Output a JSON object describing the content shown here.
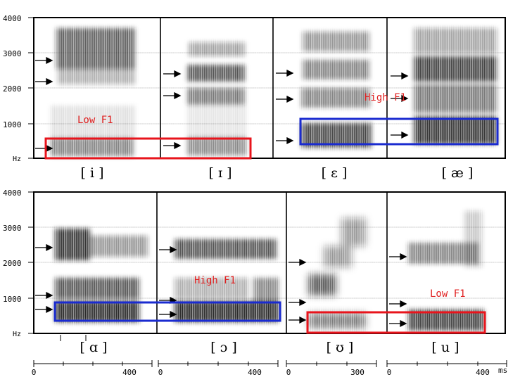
{
  "y_axis": {
    "top_ticks": [
      "4000",
      "3000",
      "2000",
      "1000",
      "Hz"
    ],
    "bottom_ticks": [
      "4000",
      "3000",
      "2000",
      "1000",
      "Hz"
    ]
  },
  "vowels_top": [
    "[ i ]",
    "[ ɪ ]",
    "[ ɛ ]",
    "[ æ ]"
  ],
  "vowels_bottom": [
    "[ ɑ ]",
    "[ ɔ ]",
    "[ ʊ ]",
    "[ u ]"
  ],
  "annotations": {
    "top_low": "Low F1",
    "top_high": "High F1",
    "bottom_high": "High F1",
    "bottom_low": "Low F1"
  },
  "time_axis": {
    "seg1": [
      "0",
      "400"
    ],
    "seg2": [
      "0",
      "400"
    ],
    "seg3": [
      "0",
      "300"
    ],
    "seg4": [
      "0",
      "400"
    ],
    "unit": "ms"
  },
  "colors": {
    "low_box": "#e8141c",
    "high_box": "#1a2bd0",
    "label_red": "#e02020",
    "spectrogram": "#1c1c1c"
  }
}
